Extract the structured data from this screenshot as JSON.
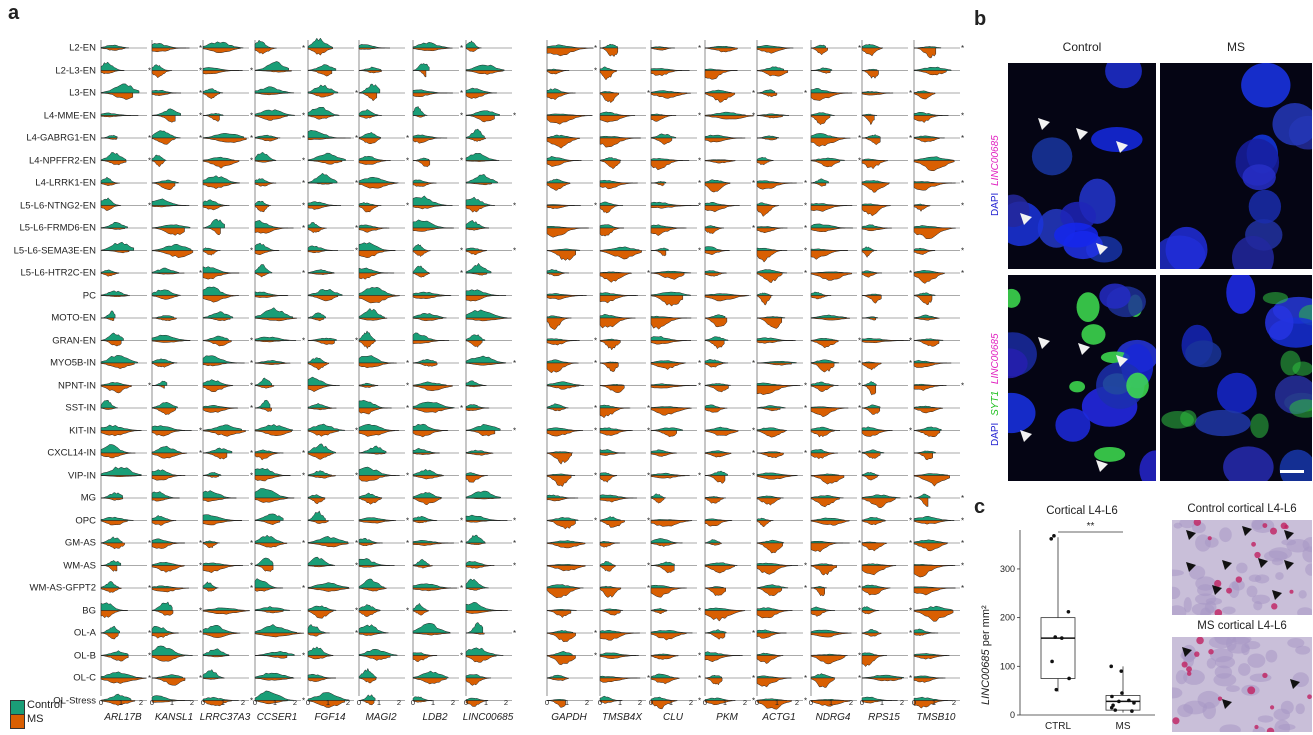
{
  "panel_a": {
    "letter": "a",
    "cell_types": [
      "L2-EN",
      "L2-L3-EN",
      "L3-EN",
      "L4-MME-EN",
      "L4-GABRG1-EN",
      "L4-NPFFR2-EN",
      "L4-LRRK1-EN",
      "L5-L6-NTNG2-EN",
      "L5-L6-FRMD6-EN",
      "L5-L6-SEMA3E-EN",
      "L5-L6-HTR2C-EN",
      "PC",
      "MOTO-EN",
      "GRAN-EN",
      "MYO5B-IN",
      "NPNT-IN",
      "SST-IN",
      "KIT-IN",
      "CXCL14-IN",
      "VIP-IN",
      "MG",
      "OPC",
      "GM-AS",
      "WM-AS",
      "WM-AS-GFPT2",
      "BG",
      "OL-A",
      "OL-B",
      "OL-C",
      "OL-Stress"
    ],
    "genes_left": [
      "ARL17B",
      "KANSL1",
      "LRRC37A3",
      "CCSER1",
      "FGF14",
      "MAGI2",
      "LDB2",
      "LINC00685"
    ],
    "genes_right": [
      "GAPDH",
      "TMSB4X",
      "CLU",
      "PKM",
      "ACTG1",
      "NDRG4",
      "RPS15",
      "TMSB10"
    ],
    "tick_labels": [
      "0",
      "1",
      "2"
    ],
    "star": "*",
    "legend": [
      {
        "label": "Control",
        "color": "#1a9e77"
      },
      {
        "label": "MS",
        "color": "#d95f02"
      }
    ]
  },
  "panel_b": {
    "letter": "b",
    "columns": [
      "Control",
      "MS"
    ],
    "row1_label_dapi": "DAPI",
    "row1_label_gene": "LINC00685",
    "row2_label_dapi": "DAPI",
    "row2_label_syt": "SYT1",
    "row2_label_gene": "LINC00685"
  },
  "panel_c": {
    "letter": "c",
    "title": "Cortical L4-L6",
    "ylabel_gene": "LINC00685",
    "ylabel_unit": " per mm²",
    "significance": "**",
    "histology_top": "Control cortical L4-L6",
    "histology_bottom": "MS cortical L4-L6",
    "chart_data": {
      "type": "box",
      "categories": [
        "CTRL",
        "MS"
      ],
      "ylim": [
        0,
        380
      ],
      "yticks": [
        0,
        100,
        200,
        300
      ],
      "boxes": [
        {
          "name": "CTRL",
          "q1": 75,
          "median": 158,
          "q3": 200,
          "whisker_low": 48,
          "whisker_high": 365
        },
        {
          "name": "MS",
          "q1": 10,
          "median": 28,
          "q3": 40,
          "whisker_low": 5,
          "whisker_high": 100
        }
      ],
      "points": [
        {
          "group": "CTRL",
          "values": [
            368,
            362,
            212,
            160,
            158,
            110,
            75,
            52
          ]
        },
        {
          "group": "MS",
          "values": [
            100,
            90,
            45,
            38,
            30,
            28,
            25,
            20,
            15,
            10,
            8
          ]
        }
      ]
    }
  }
}
